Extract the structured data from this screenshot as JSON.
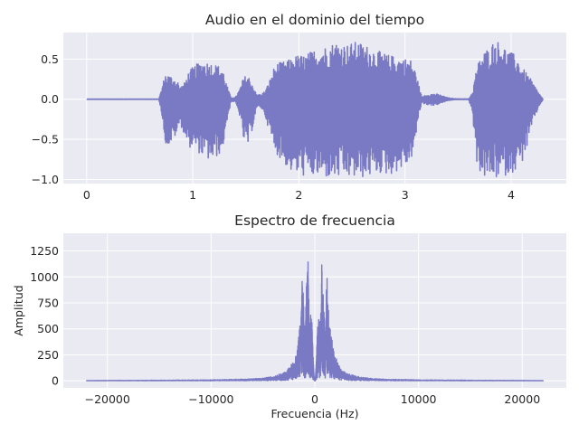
{
  "figure": {
    "background": "#ffffff",
    "axes_face": "#eaeaf2",
    "grid_color": "#ffffff",
    "line_color": "#7a79c4",
    "text_color": "#262626"
  },
  "chart_data": [
    {
      "type": "line",
      "title": "Audio en el dominio del tiempo",
      "xlabel": "",
      "ylabel": "",
      "xlim": [
        -0.22,
        4.52
      ],
      "ylim": [
        -1.05,
        0.83
      ],
      "xticks": [
        0,
        1,
        2,
        3,
        4
      ],
      "xtick_labels": [
        "0",
        "1",
        "2",
        "3",
        "4"
      ],
      "yticks": [
        -1.0,
        -0.5,
        0.0,
        0.5
      ],
      "ytick_labels": [
        "−1.0",
        "−0.5",
        "0.0",
        "0.5"
      ],
      "grid": true,
      "series": [
        {
          "style": "waveform",
          "x_range": [
            0,
            4.3
          ],
          "envelope": {
            "x": [
              0,
              0.68,
              0.7,
              0.74,
              0.78,
              0.82,
              0.86,
              0.88,
              0.92,
              0.96,
              1.0,
              1.05,
              1.1,
              1.16,
              1.2,
              1.24,
              1.28,
              1.32,
              1.36,
              1.4,
              1.44,
              1.48,
              1.52,
              1.56,
              1.6,
              1.64,
              1.68,
              1.72,
              1.76,
              1.8,
              1.86,
              1.92,
              1.98,
              2.05,
              2.15,
              2.25,
              2.35,
              2.45,
              2.55,
              2.65,
              2.75,
              2.85,
              2.95,
              3.05,
              3.1,
              3.14,
              3.16,
              3.18,
              3.22,
              3.28,
              3.34,
              3.4,
              3.46,
              3.52,
              3.6,
              3.64,
              3.66,
              3.7,
              3.75,
              3.8,
              3.85,
              3.9,
              3.95,
              4.0,
              4.05,
              4.1,
              4.15,
              4.2,
              4.26,
              4.3
            ],
            "upper": [
              0.002,
              0.002,
              0.1,
              0.32,
              0.3,
              0.27,
              0.22,
              0.15,
              0.2,
              0.34,
              0.4,
              0.45,
              0.48,
              0.46,
              0.44,
              0.42,
              0.4,
              0.18,
              0.02,
              0.02,
              0.12,
              0.28,
              0.3,
              0.2,
              0.06,
              0.06,
              0.1,
              0.22,
              0.38,
              0.45,
              0.47,
              0.5,
              0.55,
              0.55,
              0.62,
              0.66,
              0.72,
              0.68,
              0.72,
              0.66,
              0.6,
              0.55,
              0.52,
              0.5,
              0.35,
              0.12,
              0.02,
              0.05,
              0.06,
              0.07,
              0.05,
              0.02,
              0.006,
              0.004,
              0.004,
              0.1,
              0.3,
              0.5,
              0.6,
              0.66,
              0.75,
              0.7,
              0.64,
              0.58,
              0.55,
              0.4,
              0.32,
              0.22,
              0.08,
              0.004
            ],
            "lower": [
              -0.002,
              -0.002,
              -0.12,
              -0.55,
              -0.58,
              -0.5,
              -0.4,
              -0.3,
              -0.45,
              -0.6,
              -0.6,
              -0.66,
              -0.72,
              -0.77,
              -0.76,
              -0.7,
              -0.64,
              -0.3,
              -0.03,
              -0.03,
              -0.2,
              -0.52,
              -0.58,
              -0.38,
              -0.12,
              -0.1,
              -0.2,
              -0.4,
              -0.6,
              -0.7,
              -0.8,
              -0.9,
              -0.94,
              -0.96,
              -0.97,
              -0.98,
              -0.99,
              -0.98,
              -0.99,
              -0.97,
              -0.92,
              -0.95,
              -0.88,
              -0.8,
              -0.5,
              -0.15,
              -0.03,
              -0.06,
              -0.07,
              -0.08,
              -0.05,
              -0.02,
              -0.006,
              -0.004,
              -0.004,
              -0.2,
              -0.7,
              -0.9,
              -0.98,
              -0.99,
              -0.99,
              -0.98,
              -0.95,
              -0.92,
              -0.88,
              -0.8,
              -0.6,
              -0.32,
              -0.1,
              -0.004
            ]
          }
        }
      ]
    },
    {
      "type": "line",
      "title": "Espectro de frecuencia",
      "xlabel": "Frecuencia (Hz)",
      "ylabel": "Amplitud",
      "xlim": [
        -24250,
        24250
      ],
      "ylim": [
        -68,
        1420
      ],
      "xticks": [
        -20000,
        -10000,
        0,
        10000,
        20000
      ],
      "xtick_labels": [
        "−20000",
        "−10000",
        "0",
        "10000",
        "20000"
      ],
      "yticks": [
        0,
        250,
        500,
        750,
        1000,
        1250
      ],
      "ytick_labels": [
        "0",
        "250",
        "500",
        "750",
        "1000",
        "1250"
      ],
      "grid": true,
      "series": [
        {
          "style": "spectrum",
          "x_range": [
            -22050,
            22050
          ],
          "envelope": {
            "x": [
              0,
              60,
              150,
              200,
              300,
              400,
              500,
              550,
              600,
              650,
              700,
              750,
              800,
              850,
              900,
              950,
              1000,
              1050,
              1100,
              1150,
              1200,
              1300,
              1400,
              1500,
              1600,
              1700,
              1800,
              2000,
              2200,
              2400,
              2700,
              3000,
              3500,
              4000,
              4500,
              5000,
              6000,
              8000,
              10000,
              13000,
              16000,
              19000,
              22050
            ],
            "upper": [
              0,
              40,
              200,
              350,
              600,
              640,
              500,
              650,
              900,
              1150,
              1350,
              900,
              1000,
              750,
              650,
              500,
              450,
              700,
              900,
              1000,
              1050,
              700,
              600,
              500,
              420,
              380,
              300,
              240,
              180,
              140,
              100,
              80,
              60,
              45,
              35,
              28,
              20,
              14,
              10,
              8,
              6,
              5,
              3
            ]
          }
        }
      ]
    }
  ]
}
